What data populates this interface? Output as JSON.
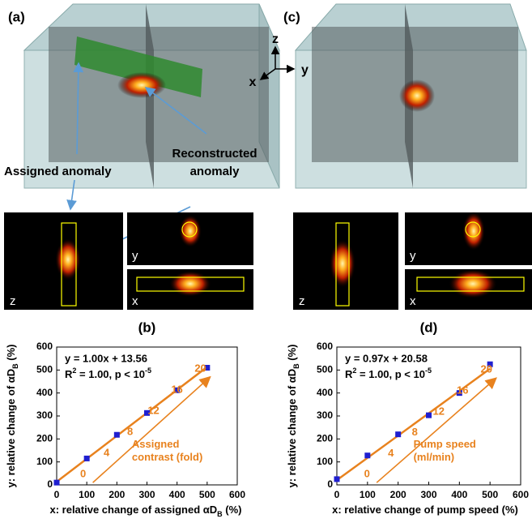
{
  "figure": {
    "panel_labels": [
      "(a)",
      "(c)"
    ],
    "axes_labels": [
      "z",
      "y",
      "x"
    ],
    "annotations": [
      "Assigned anomaly",
      "Reconstructed",
      "anomaly"
    ],
    "slice_labels_a": [
      "z",
      "y",
      "x"
    ],
    "slice_labels_c": [
      "z",
      "y",
      "x"
    ]
  },
  "chart_data": [
    {
      "type": "scatter",
      "title": "(b)",
      "y_label": [
        "y: relative change of αD",
        "B",
        " (%)"
      ],
      "x_label": [
        "x: relative change of assigned αD",
        "B",
        " (%)"
      ],
      "x": [
        0,
        100,
        200,
        300,
        400,
        500
      ],
      "series": [
        {
          "color": "#1f1fd0",
          "values": [
            10,
            115,
            218,
            313,
            412,
            510
          ]
        }
      ],
      "fit": {
        "color": "#e8821e",
        "x": [
          0,
          500
        ],
        "values": [
          13.56,
          513.56
        ]
      },
      "equation": "y = 1.00x + 13.56",
      "stats": [
        "R",
        "2",
        " = 1.00, p < 10",
        "-5"
      ],
      "arrow_labels": [
        0,
        4,
        8,
        12,
        16,
        20
      ],
      "arrow_text": [
        "Assigned",
        "contrast (fold)"
      ],
      "xlim": [
        0,
        600
      ],
      "xticks": [
        0,
        100,
        200,
        300,
        400,
        500,
        600
      ],
      "ylim": [
        0,
        600
      ],
      "yticks": [
        0,
        100,
        200,
        300,
        400,
        500,
        600
      ],
      "grid": false
    },
    {
      "type": "scatter",
      "title": "(d)",
      "y_label": [
        "y: relative change of αD",
        "B",
        " (%)"
      ],
      "x_label": [
        "x: relative change of pump speed (%)"
      ],
      "x": [
        0,
        100,
        200,
        300,
        400,
        500
      ],
      "series": [
        {
          "color": "#1f1fd0",
          "values": [
            25,
            128,
            220,
            303,
            400,
            525
          ]
        }
      ],
      "fit": {
        "color": "#e8821e",
        "x": [
          0,
          500
        ],
        "values": [
          20.58,
          505.58
        ]
      },
      "equation": "y = 0.97x + 20.58",
      "stats": [
        "R",
        "2",
        " = 1.00, p < 10",
        "-5"
      ],
      "arrow_labels": [
        0,
        4,
        8,
        12,
        16,
        20
      ],
      "arrow_text": [
        "Pump speed",
        "(ml/min)"
      ],
      "xlim": [
        0,
        600
      ],
      "xticks": [
        0,
        100,
        200,
        300,
        400,
        500,
        600
      ],
      "ylim": [
        0,
        600
      ],
      "yticks": [
        0,
        100,
        200,
        300,
        400,
        500,
        600
      ],
      "grid": false
    }
  ]
}
